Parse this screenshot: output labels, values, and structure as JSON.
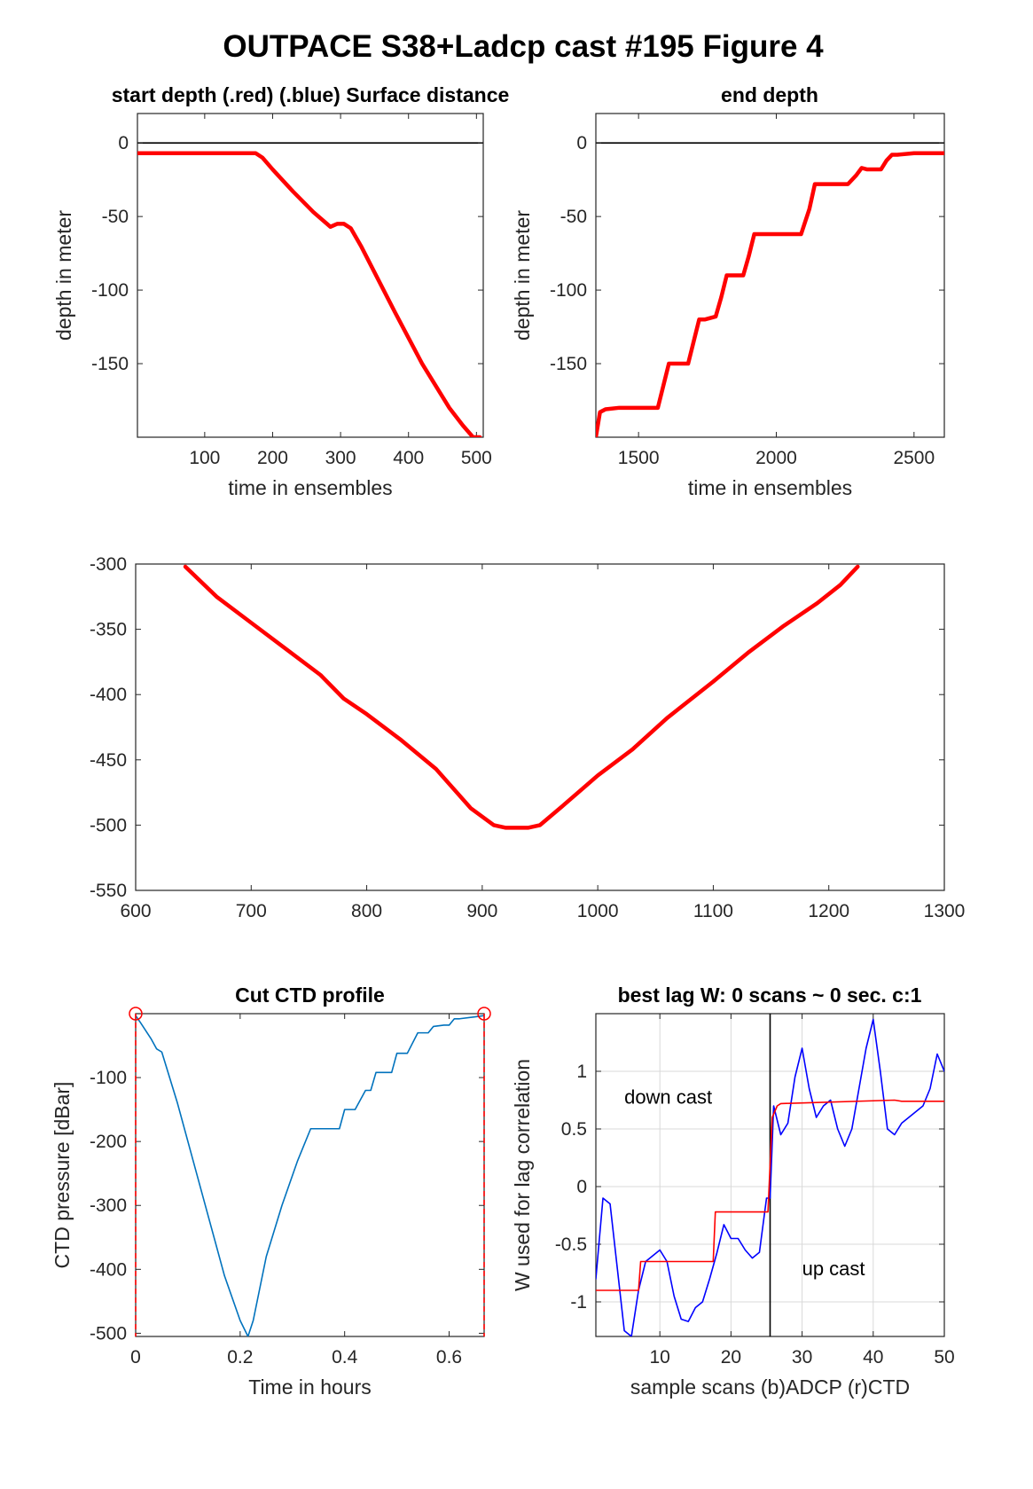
{
  "figure_title": "OUTPACE S38+Ladcp cast #195   Figure 4",
  "colors": {
    "red": "#ff0000",
    "blue": "#0000ff",
    "ctd_blue": "#0072bd",
    "axis": "#262626",
    "grid": "#d9d9d9"
  },
  "chart_data": [
    {
      "id": "start_depth",
      "type": "line",
      "title": "start depth (.red) (.blue) Surface distance",
      "xlabel": "time in ensembles",
      "ylabel": "depth in meter",
      "xlim": [
        1,
        510
      ],
      "ylim": [
        -200,
        20
      ],
      "xticks": [
        100,
        200,
        300,
        400,
        500
      ],
      "yticks": [
        0,
        -50,
        -100,
        -150
      ],
      "xtick_labels": [
        "100",
        "200",
        "300",
        "400",
        "500"
      ],
      "ytick_labels": [
        "0",
        "-50",
        "-100",
        "-150"
      ],
      "hline": 0,
      "series": [
        {
          "color": "#ff0000",
          "x": [
            1,
            100,
            175,
            185,
            200,
            230,
            260,
            285,
            295,
            305,
            315,
            330,
            350,
            380,
            420,
            460,
            480,
            495,
            505
          ],
          "y": [
            -7,
            -7,
            -7,
            -10,
            -18,
            -33,
            -47,
            -57,
            -55,
            -55,
            -58,
            -70,
            -88,
            -115,
            -150,
            -180,
            -192,
            -200,
            -200
          ]
        }
      ]
    },
    {
      "id": "end_depth",
      "type": "line",
      "title": "end depth",
      "xlabel": "time in ensembles",
      "ylabel": "depth in meter",
      "xlim": [
        1345,
        2610
      ],
      "ylim": [
        -200,
        20
      ],
      "xticks": [
        1500,
        2000,
        2500
      ],
      "yticks": [
        0,
        -50,
        -100,
        -150
      ],
      "xtick_labels": [
        "1500",
        "2000",
        "2500"
      ],
      "ytick_labels": [
        "0",
        "-50",
        "-100",
        "-150"
      ],
      "hline": 0,
      "series": [
        {
          "color": "#ff0000",
          "x": [
            1345,
            1360,
            1380,
            1430,
            1500,
            1570,
            1590,
            1610,
            1630,
            1680,
            1700,
            1720,
            1740,
            1780,
            1800,
            1820,
            1840,
            1880,
            1900,
            1920,
            1940,
            1970,
            2000,
            2050,
            2090,
            2120,
            2140,
            2170,
            2200,
            2260,
            2290,
            2310,
            2330,
            2380,
            2400,
            2420,
            2440,
            2500,
            2610
          ],
          "y": [
            -200,
            -183,
            -181,
            -180,
            -180,
            -180,
            -165,
            -150,
            -150,
            -150,
            -135,
            -120,
            -120,
            -118,
            -105,
            -90,
            -90,
            -90,
            -77,
            -62,
            -62,
            -62,
            -62,
            -62,
            -62,
            -45,
            -28,
            -28,
            -28,
            -28,
            -22,
            -17,
            -18,
            -18,
            -12,
            -8,
            -8,
            -7,
            -7
          ]
        }
      ]
    },
    {
      "id": "middle",
      "type": "line",
      "title": "",
      "xlabel": "",
      "ylabel": "",
      "xlim": [
        600,
        1300
      ],
      "ylim": [
        -550,
        -300
      ],
      "xticks": [
        600,
        700,
        800,
        900,
        1000,
        1100,
        1200,
        1300
      ],
      "yticks": [
        -300,
        -350,
        -400,
        -450,
        -500,
        -550
      ],
      "xtick_labels": [
        "600",
        "700",
        "800",
        "900",
        "1000",
        "1100",
        "1200",
        "1300"
      ],
      "ytick_labels": [
        "-300",
        "-350",
        "-400",
        "-450",
        "-500",
        "-550"
      ],
      "series": [
        {
          "color": "#ff0000",
          "x": [
            643,
            670,
            700,
            730,
            760,
            780,
            800,
            830,
            860,
            890,
            910,
            920,
            940,
            950,
            970,
            1000,
            1030,
            1060,
            1100,
            1130,
            1160,
            1190,
            1210,
            1225
          ],
          "y": [
            -302,
            -325,
            -345,
            -365,
            -385,
            -403,
            -415,
            -435,
            -457,
            -487,
            -500,
            -502,
            -502,
            -500,
            -485,
            -462,
            -442,
            -418,
            -390,
            -368,
            -348,
            -330,
            -316,
            -302
          ]
        }
      ]
    },
    {
      "id": "cut_ctd",
      "type": "line",
      "title": "Cut CTD profile",
      "xlabel": "Time in hours",
      "ylabel": "CTD pressure [dBar]",
      "xlim": [
        0,
        0.667
      ],
      "ylim": [
        -505,
        0
      ],
      "xticks": [
        0,
        0.2,
        0.4,
        0.6
      ],
      "yticks": [
        -100,
        -200,
        -300,
        -400,
        -500
      ],
      "xtick_labels": [
        "0",
        "0.2",
        "0.4",
        "0.6"
      ],
      "ytick_labels": [
        "-100",
        "-200",
        "-300",
        "-400",
        "-500"
      ],
      "markers": [
        {
          "x": 0.0,
          "y": 0
        },
        {
          "x": 0.667,
          "y": 0
        }
      ],
      "series": [
        {
          "color": "#0072bd",
          "x": [
            0.0,
            0.01,
            0.03,
            0.04,
            0.05,
            0.08,
            0.11,
            0.14,
            0.17,
            0.2,
            0.215,
            0.225,
            0.25,
            0.28,
            0.31,
            0.335,
            0.37,
            0.39,
            0.4,
            0.41,
            0.42,
            0.44,
            0.45,
            0.46,
            0.47,
            0.49,
            0.5,
            0.51,
            0.52,
            0.54,
            0.55,
            0.56,
            0.57,
            0.59,
            0.6,
            0.61,
            0.62,
            0.65,
            0.667
          ],
          "y": [
            -3,
            -15,
            -40,
            -55,
            -60,
            -140,
            -230,
            -320,
            -410,
            -480,
            -505,
            -480,
            -380,
            -300,
            -230,
            -180,
            -180,
            -180,
            -150,
            -150,
            -150,
            -120,
            -120,
            -92,
            -92,
            -92,
            -62,
            -62,
            -62,
            -30,
            -30,
            -30,
            -20,
            -18,
            -18,
            -8,
            -8,
            -5,
            -3
          ]
        }
      ]
    },
    {
      "id": "best_lag",
      "type": "line",
      "title": "best lag W: 0 scans ~ 0 sec.  c:1",
      "xlabel": "sample scans (b)ADCP (r)CTD",
      "ylabel": "W used for lag correlation",
      "xlim": [
        1,
        50
      ],
      "ylim": [
        -1.3,
        1.5
      ],
      "xticks": [
        10,
        20,
        30,
        40,
        50
      ],
      "yticks": [
        1,
        0.5,
        0,
        -0.5,
        -1
      ],
      "xtick_labels": [
        "10",
        "20",
        "30",
        "40",
        "50"
      ],
      "ytick_labels": [
        "1",
        "0.5",
        "0",
        "-0.5",
        "-1"
      ],
      "grid": true,
      "vline": 25.5,
      "annotations": [
        {
          "text": "down cast",
          "x": 5,
          "y": 0.72
        },
        {
          "text": "up cast",
          "x": 30,
          "y": -0.77
        }
      ],
      "series": [
        {
          "name": "ADCP",
          "color": "#0000ff",
          "x": [
            1,
            2,
            3,
            4,
            5,
            6,
            7,
            8,
            9,
            10,
            11,
            12,
            13,
            14,
            15,
            16,
            17,
            18,
            19,
            20,
            21,
            22,
            23,
            24,
            25,
            25.5,
            26,
            27,
            28,
            29,
            30,
            31,
            32,
            33,
            34,
            35,
            36,
            37,
            38,
            39,
            40,
            41,
            42,
            43,
            44,
            45,
            46,
            47,
            48,
            49,
            50
          ],
          "y": [
            -0.8,
            -0.1,
            -0.15,
            -0.7,
            -1.25,
            -1.3,
            -0.9,
            -0.65,
            -0.6,
            -0.55,
            -0.65,
            -0.95,
            -1.15,
            -1.17,
            -1.05,
            -1.0,
            -0.8,
            -0.58,
            -0.33,
            -0.45,
            -0.45,
            -0.55,
            -0.62,
            -0.57,
            -0.1,
            -0.1,
            0.7,
            0.45,
            0.55,
            0.95,
            1.2,
            0.85,
            0.6,
            0.7,
            0.75,
            0.5,
            0.35,
            0.5,
            0.85,
            1.2,
            1.45,
            1.0,
            0.5,
            0.45,
            0.55,
            0.6,
            0.65,
            0.7,
            0.85,
            1.15,
            1.0
          ]
        },
        {
          "name": "CTD",
          "color": "#ff0000",
          "x": [
            1,
            7,
            7.3,
            17.5,
            17.8,
            25.2,
            25.8,
            26.5,
            27,
            43,
            44,
            50
          ],
          "y": [
            -0.9,
            -0.9,
            -0.65,
            -0.65,
            -0.22,
            -0.22,
            0.6,
            0.7,
            0.72,
            0.75,
            0.74,
            0.74
          ]
        }
      ]
    }
  ]
}
